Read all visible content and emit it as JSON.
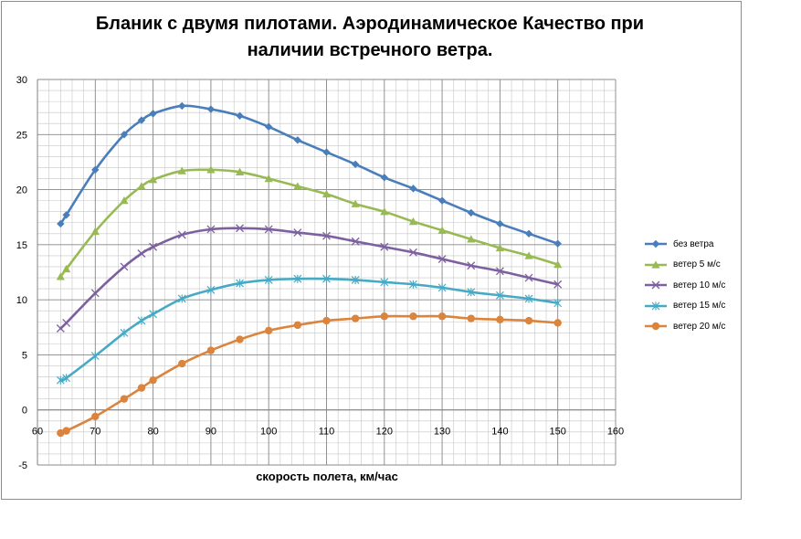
{
  "chart_data": {
    "type": "line",
    "title": "Бланик с двумя пилотами. Аэродинамическое Качество при наличии встречного ветра.",
    "title_lines": [
      "Бланик с двумя пилотами. Аэродинамическое Качество при",
      "наличии встречного ветра."
    ],
    "xlabel": "скорость полета, км/час",
    "ylabel": "",
    "xlim": [
      60,
      160
    ],
    "ylim": [
      -5,
      30
    ],
    "x_ticks": [
      60,
      70,
      80,
      90,
      100,
      110,
      120,
      130,
      140,
      150,
      160
    ],
    "y_ticks": [
      -5,
      0,
      5,
      10,
      15,
      20,
      25,
      30
    ],
    "grid": true,
    "minor_grid": true,
    "legend_position": "right",
    "series": [
      {
        "name": "без ветра",
        "color": "#4a7ebb",
        "marker": "diamond",
        "points": [
          [
            64,
            16.9
          ],
          [
            65,
            17.7
          ],
          [
            70,
            21.8
          ],
          [
            75,
            25.0
          ],
          [
            78,
            26.3
          ],
          [
            80,
            26.9
          ],
          [
            85,
            27.6
          ],
          [
            90,
            27.3
          ],
          [
            95,
            26.7
          ],
          [
            100,
            25.7
          ],
          [
            105,
            24.5
          ],
          [
            110,
            23.4
          ],
          [
            115,
            22.3
          ],
          [
            120,
            21.1
          ],
          [
            125,
            20.1
          ],
          [
            130,
            19.0
          ],
          [
            135,
            17.9
          ],
          [
            140,
            16.9
          ],
          [
            145,
            16.0
          ],
          [
            150,
            15.1
          ]
        ]
      },
      {
        "name": "ветер 5 м/с",
        "color": "#98b954",
        "marker": "triangle",
        "points": [
          [
            64,
            12.1
          ],
          [
            65,
            12.8
          ],
          [
            70,
            16.2
          ],
          [
            75,
            19.0
          ],
          [
            78,
            20.3
          ],
          [
            80,
            20.9
          ],
          [
            85,
            21.7
          ],
          [
            90,
            21.8
          ],
          [
            95,
            21.6
          ],
          [
            100,
            21.0
          ],
          [
            105,
            20.3
          ],
          [
            110,
            19.6
          ],
          [
            115,
            18.7
          ],
          [
            120,
            18.0
          ],
          [
            125,
            17.1
          ],
          [
            130,
            16.3
          ],
          [
            135,
            15.5
          ],
          [
            140,
            14.7
          ],
          [
            145,
            14.0
          ],
          [
            150,
            13.2
          ]
        ]
      },
      {
        "name": "ветер 10 м/с",
        "color": "#7d60a0",
        "marker": "x",
        "points": [
          [
            64,
            7.4
          ],
          [
            65,
            7.9
          ],
          [
            70,
            10.6
          ],
          [
            75,
            13.0
          ],
          [
            78,
            14.2
          ],
          [
            80,
            14.8
          ],
          [
            85,
            15.9
          ],
          [
            90,
            16.4
          ],
          [
            95,
            16.5
          ],
          [
            100,
            16.4
          ],
          [
            105,
            16.1
          ],
          [
            110,
            15.8
          ],
          [
            115,
            15.3
          ],
          [
            120,
            14.8
          ],
          [
            125,
            14.3
          ],
          [
            130,
            13.7
          ],
          [
            135,
            13.1
          ],
          [
            140,
            12.6
          ],
          [
            145,
            12.0
          ],
          [
            150,
            11.4
          ]
        ]
      },
      {
        "name": "ветер 15 м/с",
        "color": "#46aac5",
        "marker": "asterisk",
        "points": [
          [
            64,
            2.7
          ],
          [
            65,
            2.9
          ],
          [
            70,
            4.9
          ],
          [
            75,
            7.0
          ],
          [
            78,
            8.1
          ],
          [
            80,
            8.7
          ],
          [
            85,
            10.1
          ],
          [
            90,
            10.9
          ],
          [
            95,
            11.5
          ],
          [
            100,
            11.8
          ],
          [
            105,
            11.9
          ],
          [
            110,
            11.9
          ],
          [
            115,
            11.8
          ],
          [
            120,
            11.6
          ],
          [
            125,
            11.4
          ],
          [
            130,
            11.1
          ],
          [
            135,
            10.7
          ],
          [
            140,
            10.4
          ],
          [
            145,
            10.1
          ],
          [
            150,
            9.7
          ]
        ]
      },
      {
        "name": "ветер 20 м/с",
        "color": "#db843d",
        "marker": "circle",
        "points": [
          [
            64,
            -2.1
          ],
          [
            65,
            -1.9
          ],
          [
            70,
            -0.6
          ],
          [
            75,
            1.0
          ],
          [
            78,
            2.0
          ],
          [
            80,
            2.7
          ],
          [
            85,
            4.2
          ],
          [
            90,
            5.4
          ],
          [
            95,
            6.4
          ],
          [
            100,
            7.2
          ],
          [
            105,
            7.7
          ],
          [
            110,
            8.1
          ],
          [
            115,
            8.3
          ],
          [
            120,
            8.5
          ],
          [
            125,
            8.5
          ],
          [
            130,
            8.5
          ],
          [
            135,
            8.3
          ],
          [
            140,
            8.2
          ],
          [
            145,
            8.1
          ],
          [
            150,
            7.9
          ]
        ]
      }
    ]
  }
}
